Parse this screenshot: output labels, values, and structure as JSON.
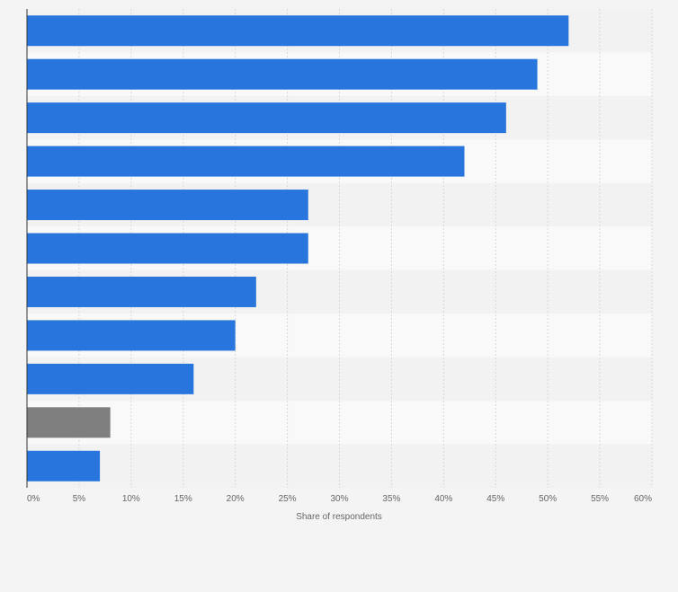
{
  "chart_data": {
    "type": "bar",
    "orientation": "horizontal",
    "categories": [
      "",
      "",
      "",
      "",
      "",
      "",
      "",
      "",
      "",
      "",
      ""
    ],
    "values": [
      52,
      49,
      46,
      42,
      27,
      27,
      22,
      20,
      16,
      8,
      7
    ],
    "bar_colors": [
      "#2876dd",
      "#2876dd",
      "#2876dd",
      "#2876dd",
      "#2876dd",
      "#2876dd",
      "#2876dd",
      "#2876dd",
      "#2876dd",
      "#7f7f7f",
      "#2876dd"
    ],
    "xlabel": "Share of respondents",
    "ylabel": "",
    "xlim": [
      0,
      60
    ],
    "x_ticks": [
      "0%",
      "5%",
      "10%",
      "15%",
      "20%",
      "25%",
      "30%",
      "35%",
      "40%",
      "45%",
      "50%",
      "55%",
      "60%"
    ],
    "grid": true,
    "alternating_row_bands": true
  },
  "colors": {
    "bar": "#2876dd",
    "highlight_bar": "#7f7f7f",
    "band_dark": "#f2f2f2",
    "band_light": "#f9f9f9",
    "grid": "#d8d8d8",
    "axis": "#333333",
    "background": "#f4f4f4"
  }
}
